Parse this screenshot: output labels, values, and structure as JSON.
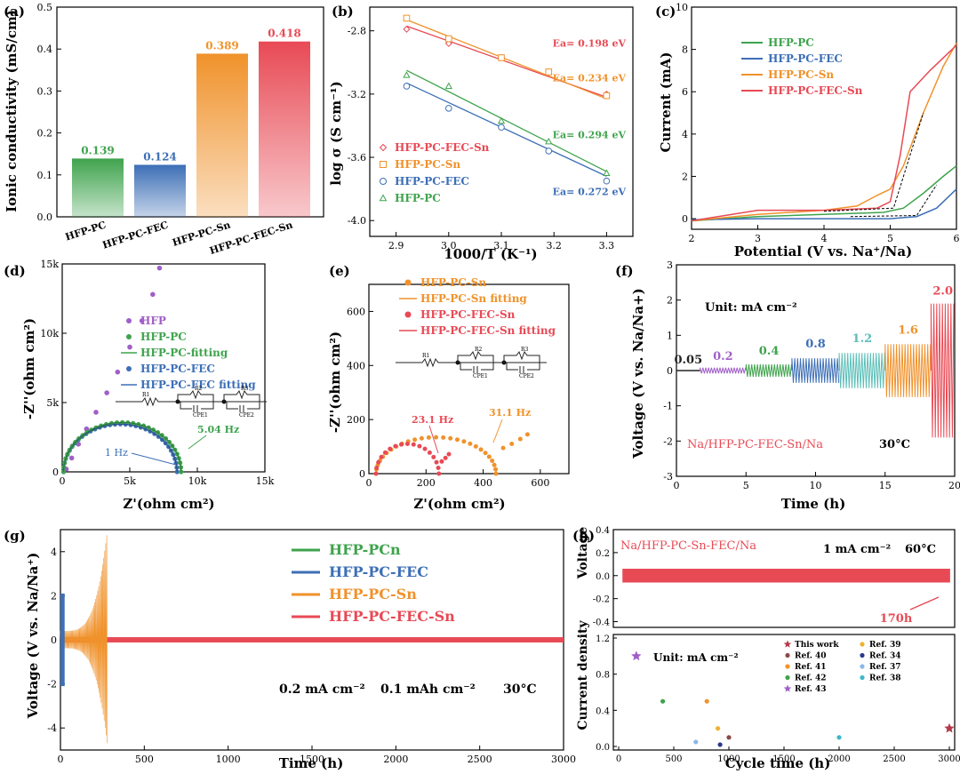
{
  "chart_data": [
    {
      "panel": "(a)",
      "type": "bar",
      "ylabel": "Ionic conductivity (mS/cm)",
      "categories": [
        "HFP-PC",
        "HFP-PC-FEC",
        "HFP-PC-Sn",
        "HFP-PC-FEC-Sn"
      ],
      "values": [
        0.139,
        0.124,
        0.389,
        0.418
      ],
      "value_labels": [
        "0.139",
        "0.124",
        "0.389",
        "0.418"
      ],
      "colors": [
        "#3fa34d",
        "#3d6fb6",
        "#f0922b",
        "#e84a55"
      ],
      "ylim": [
        0,
        0.5
      ],
      "yticks": [
        "0.0",
        "0.1",
        "0.2",
        "0.3",
        "0.4",
        "0.5"
      ]
    },
    {
      "panel": "(b)",
      "type": "scatter",
      "xlabel": "1000/T (K⁻¹)",
      "ylabel": "log σ (S cm⁻¹)",
      "xlim": [
        2.85,
        3.35
      ],
      "ylim": [
        -4.1,
        -2.65
      ],
      "xticks": [
        "2.9",
        "3.0",
        "3.1",
        "3.2",
        "3.3"
      ],
      "yticks": [
        "-2.8",
        "-3.2",
        "-3.6",
        "-4.0"
      ],
      "x": [
        2.92,
        3.0,
        3.1,
        3.19,
        3.3
      ],
      "series": [
        {
          "name": "HFP-PC-FEC-Sn",
          "color": "#e84a55",
          "marker": "diamond",
          "values": [
            -2.79,
            -2.88,
            -2.97,
            -3.06,
            -3.2
          ],
          "fit": [
            -2.77,
            -3.22
          ],
          "ea": "Ea= 0.198 eV"
        },
        {
          "name": "HFP-PC-Sn",
          "color": "#f0922b",
          "marker": "square",
          "values": [
            -2.72,
            -2.85,
            -2.97,
            -3.06,
            -3.21
          ],
          "fit": [
            -2.73,
            -3.23
          ],
          "ea": "Ea= 0.234 eV"
        },
        {
          "name": "HFP-PC-FEC",
          "color": "#3d6fb6",
          "marker": "circle",
          "values": [
            -3.15,
            -3.29,
            -3.41,
            -3.56,
            -3.75
          ],
          "fit": [
            -3.13,
            -3.72
          ],
          "ea": "Ea= 0.272 eV"
        },
        {
          "name": "HFP-PC",
          "color": "#3fa34d",
          "marker": "triangle",
          "values": [
            -3.08,
            -3.15,
            -3.37,
            -3.5,
            -3.7
          ],
          "fit": [
            -3.05,
            -3.69
          ],
          "ea": "Ea= 0.294 eV"
        }
      ]
    },
    {
      "panel": "(c)",
      "type": "line",
      "xlabel": "Potential (V vs. Na⁺/Na)",
      "ylabel": "Current (mA)",
      "xlim": [
        2,
        6
      ],
      "ylim": [
        -0.5,
        10
      ],
      "xticks": [
        "2",
        "3",
        "4",
        "5",
        "6"
      ],
      "yticks": [
        "0",
        "2",
        "4",
        "6",
        "8",
        "10"
      ],
      "series": [
        {
          "name": "HFP-PC",
          "color": "#3fa34d",
          "x": [
            2,
            3,
            4,
            4.9,
            5.2,
            5.5,
            5.8,
            6
          ],
          "y": [
            -0.1,
            0.1,
            0.2,
            0.3,
            0.5,
            1.2,
            2.0,
            2.5
          ]
        },
        {
          "name": "HFP-PC-FEC",
          "color": "#3d6fb6",
          "x": [
            2,
            3,
            4,
            5,
            5.4,
            5.7,
            6
          ],
          "y": [
            -0.05,
            0,
            0,
            0,
            0.1,
            0.5,
            1.4
          ]
        },
        {
          "name": "HFP-PC-Sn",
          "color": "#f0922b",
          "x": [
            2,
            3,
            4,
            4.5,
            4.8,
            5.0,
            5.2,
            5.5,
            5.8,
            6
          ],
          "y": [
            -0.1,
            0.2,
            0.4,
            0.6,
            1.1,
            1.4,
            2.5,
            5.0,
            7.2,
            8.3
          ]
        },
        {
          "name": "HFP-PC-FEC-Sn",
          "color": "#e84a55",
          "x": [
            2,
            3,
            4,
            4.8,
            5.0,
            5.15,
            5.3,
            5.6,
            6
          ],
          "y": [
            -0.1,
            0.4,
            0.4,
            0.5,
            0.8,
            3.0,
            6.0,
            7.0,
            8.2
          ]
        }
      ]
    },
    {
      "panel": "(d)",
      "type": "scatter",
      "xlabel": "Z'(ohm cm²)",
      "ylabel": "-Z''(ohm cm²)",
      "xlim": [
        0,
        15000
      ],
      "ylim": [
        0,
        15000
      ],
      "xticks": [
        "0",
        "5k",
        "10k",
        "15k"
      ],
      "yticks": [
        "0",
        "5k",
        "10k",
        "15k"
      ],
      "legend": [
        "HFP",
        "HFP-PC",
        "HFP-PC-fitting",
        "HFP-PC-FEC",
        "HFP-PC-FEC fitting"
      ],
      "annotations": [
        "5.04 Hz",
        "1 Hz"
      ],
      "circuit_labels": [
        "R1",
        "R2",
        "CPE1",
        "R3",
        "CPE2"
      ]
    },
    {
      "panel": "(e)",
      "type": "scatter",
      "xlabel": "Z'(ohm cm²)",
      "ylabel": "-Z''(ohm cm²)",
      "xlim": [
        0,
        700
      ],
      "ylim": [
        0,
        700
      ],
      "xticks": [
        "0",
        "200",
        "400",
        "600"
      ],
      "yticks": [
        "0",
        "200",
        "400",
        "600"
      ],
      "legend": [
        "HFP-PC-Sn",
        "HFP-PC-Sn fitting",
        "HFP-PC-FEC-Sn",
        "HFP-PC-FEC-Sn fitting"
      ],
      "annotations": [
        "23.1 Hz",
        "31.1 Hz"
      ],
      "circuit_labels": [
        "R1",
        "R2",
        "CPE1",
        "R3",
        "CPE2"
      ]
    },
    {
      "panel": "(f)",
      "type": "line",
      "xlabel": "Time (h)",
      "ylabel": "Voltage (V vs. Na/Na+)",
      "xlim": [
        0,
        20
      ],
      "ylim": [
        -3,
        3
      ],
      "xticks": [
        "0",
        "5",
        "10",
        "15",
        "20"
      ],
      "yticks": [
        "-3",
        "-2",
        "-1",
        "0",
        "1",
        "2",
        "3"
      ],
      "unit_label": "Unit: mA cm⁻²",
      "cell_label": "Na/HFP-PC-FEC-Sn/Na",
      "temp_label": "30°C",
      "current_labels": [
        "0.05",
        "0.2",
        "0.4",
        "0.8",
        "1.2",
        "1.6",
        "2.0"
      ],
      "segments": [
        {
          "rate": "0.05",
          "color": "#222222",
          "t0": 0,
          "t1": 1.7,
          "amp": 0.02
        },
        {
          "rate": "0.2",
          "color": "#a05fc8",
          "t0": 1.7,
          "t1": 5,
          "amp": 0.08
        },
        {
          "rate": "0.4",
          "color": "#3fa34d",
          "t0": 5,
          "t1": 8.3,
          "amp": 0.18
        },
        {
          "rate": "0.8",
          "color": "#3d6fb6",
          "t0": 8.3,
          "t1": 11.7,
          "amp": 0.35
        },
        {
          "rate": "1.2",
          "color": "#5bbfb8",
          "t0": 11.7,
          "t1": 15,
          "amp": 0.5
        },
        {
          "rate": "1.6",
          "color": "#f0922b",
          "t0": 15,
          "t1": 18.3,
          "amp": 0.75
        },
        {
          "rate": "2.0",
          "color": "#e84a55",
          "t0": 18.3,
          "t1": 20,
          "amp": 1.9
        }
      ]
    },
    {
      "panel": "(g)",
      "type": "line",
      "xlabel": "Time (h)",
      "ylabel": "Voltage (V vs. Na/Na⁺)",
      "xlim": [
        0,
        3000
      ],
      "ylim": [
        -5,
        5
      ],
      "xticks": [
        "0",
        "500",
        "1000",
        "1500",
        "2000",
        "2500",
        "3000"
      ],
      "yticks": [
        "-4",
        "-2",
        "0",
        "2",
        "4"
      ],
      "legend": [
        "HFP-PCn",
        "HFP-PC-FEC",
        "HFP-PC-Sn",
        "HFP-PC-FEC-Sn"
      ],
      "legend_colors": [
        "#3fa34d",
        "#3d6fb6",
        "#f0922b",
        "#e84a55"
      ],
      "condition_labels": [
        "0.2 mA cm⁻²",
        "0.1 mAh cm⁻²",
        "30°C"
      ],
      "series": [
        {
          "name": "HFP-PC-FEC",
          "end_time": 25,
          "max_amp": 2.1
        },
        {
          "name": "HFP-PC-Sn",
          "end_time": 280,
          "max_amp": 5.0
        },
        {
          "name": "HFP-PC-FEC-Sn",
          "end_time": 3000,
          "amp": 0.03
        }
      ]
    },
    {
      "panel": "(h)",
      "type": "line",
      "xlabel": "Cycle time (h)",
      "ylabel": "Voltage",
      "xlim": [
        0,
        3000
      ],
      "ylim": [
        -0.45,
        0.4
      ],
      "yticks": [
        "0.4",
        "0.2",
        "0.0",
        "-0.2",
        "-0.4"
      ],
      "cell_label": "Na/HFP-PC-Sn-FEC/Na",
      "condition_labels": [
        "1 mA cm⁻²",
        "60°C"
      ],
      "arrow_label": "170h",
      "amp": 0.06
    },
    {
      "panel": "(h) lower",
      "type": "scatter",
      "xlabel": "Cycle time (h)",
      "ylabel": "Current density",
      "xlim": [
        0,
        3000
      ],
      "ylim": [
        0,
        1.2
      ],
      "xticks": [
        "0",
        "500",
        "1000",
        "1500",
        "2000",
        "2500",
        "3000"
      ],
      "yticks": [
        "0.0",
        "0.4",
        "0.8",
        "1.2"
      ],
      "unit_label": "Unit: mA cm⁻²",
      "points": [
        {
          "name": "This work",
          "x": 3000,
          "y": 0.2,
          "color": "#b53a4a",
          "marker": "star"
        },
        {
          "name": "Ref. 40",
          "x": 1000,
          "y": 0.1,
          "color": "#8b4a4a",
          "marker": "circle"
        },
        {
          "name": "Ref. 41",
          "x": 800,
          "y": 0.5,
          "color": "#f0922b",
          "marker": "circle"
        },
        {
          "name": "Ref. 42",
          "x": 400,
          "y": 0.5,
          "color": "#3fa34d",
          "marker": "circle"
        },
        {
          "name": "Ref. 43",
          "x": 160,
          "y": 1.0,
          "color": "#a05fc8",
          "marker": "star"
        },
        {
          "name": "Ref. 39",
          "x": 900,
          "y": 0.2,
          "color": "#f0b030",
          "marker": "circle"
        },
        {
          "name": "Ref. 34",
          "x": 920,
          "y": 0.02,
          "color": "#2a3a8a",
          "marker": "circle"
        },
        {
          "name": "Ref. 37",
          "x": 700,
          "y": 0.05,
          "color": "#8ab8e8",
          "marker": "circle"
        },
        {
          "name": "Ref. 38",
          "x": 2000,
          "y": 0.1,
          "color": "#3cb8c8",
          "marker": "circle"
        }
      ]
    }
  ]
}
